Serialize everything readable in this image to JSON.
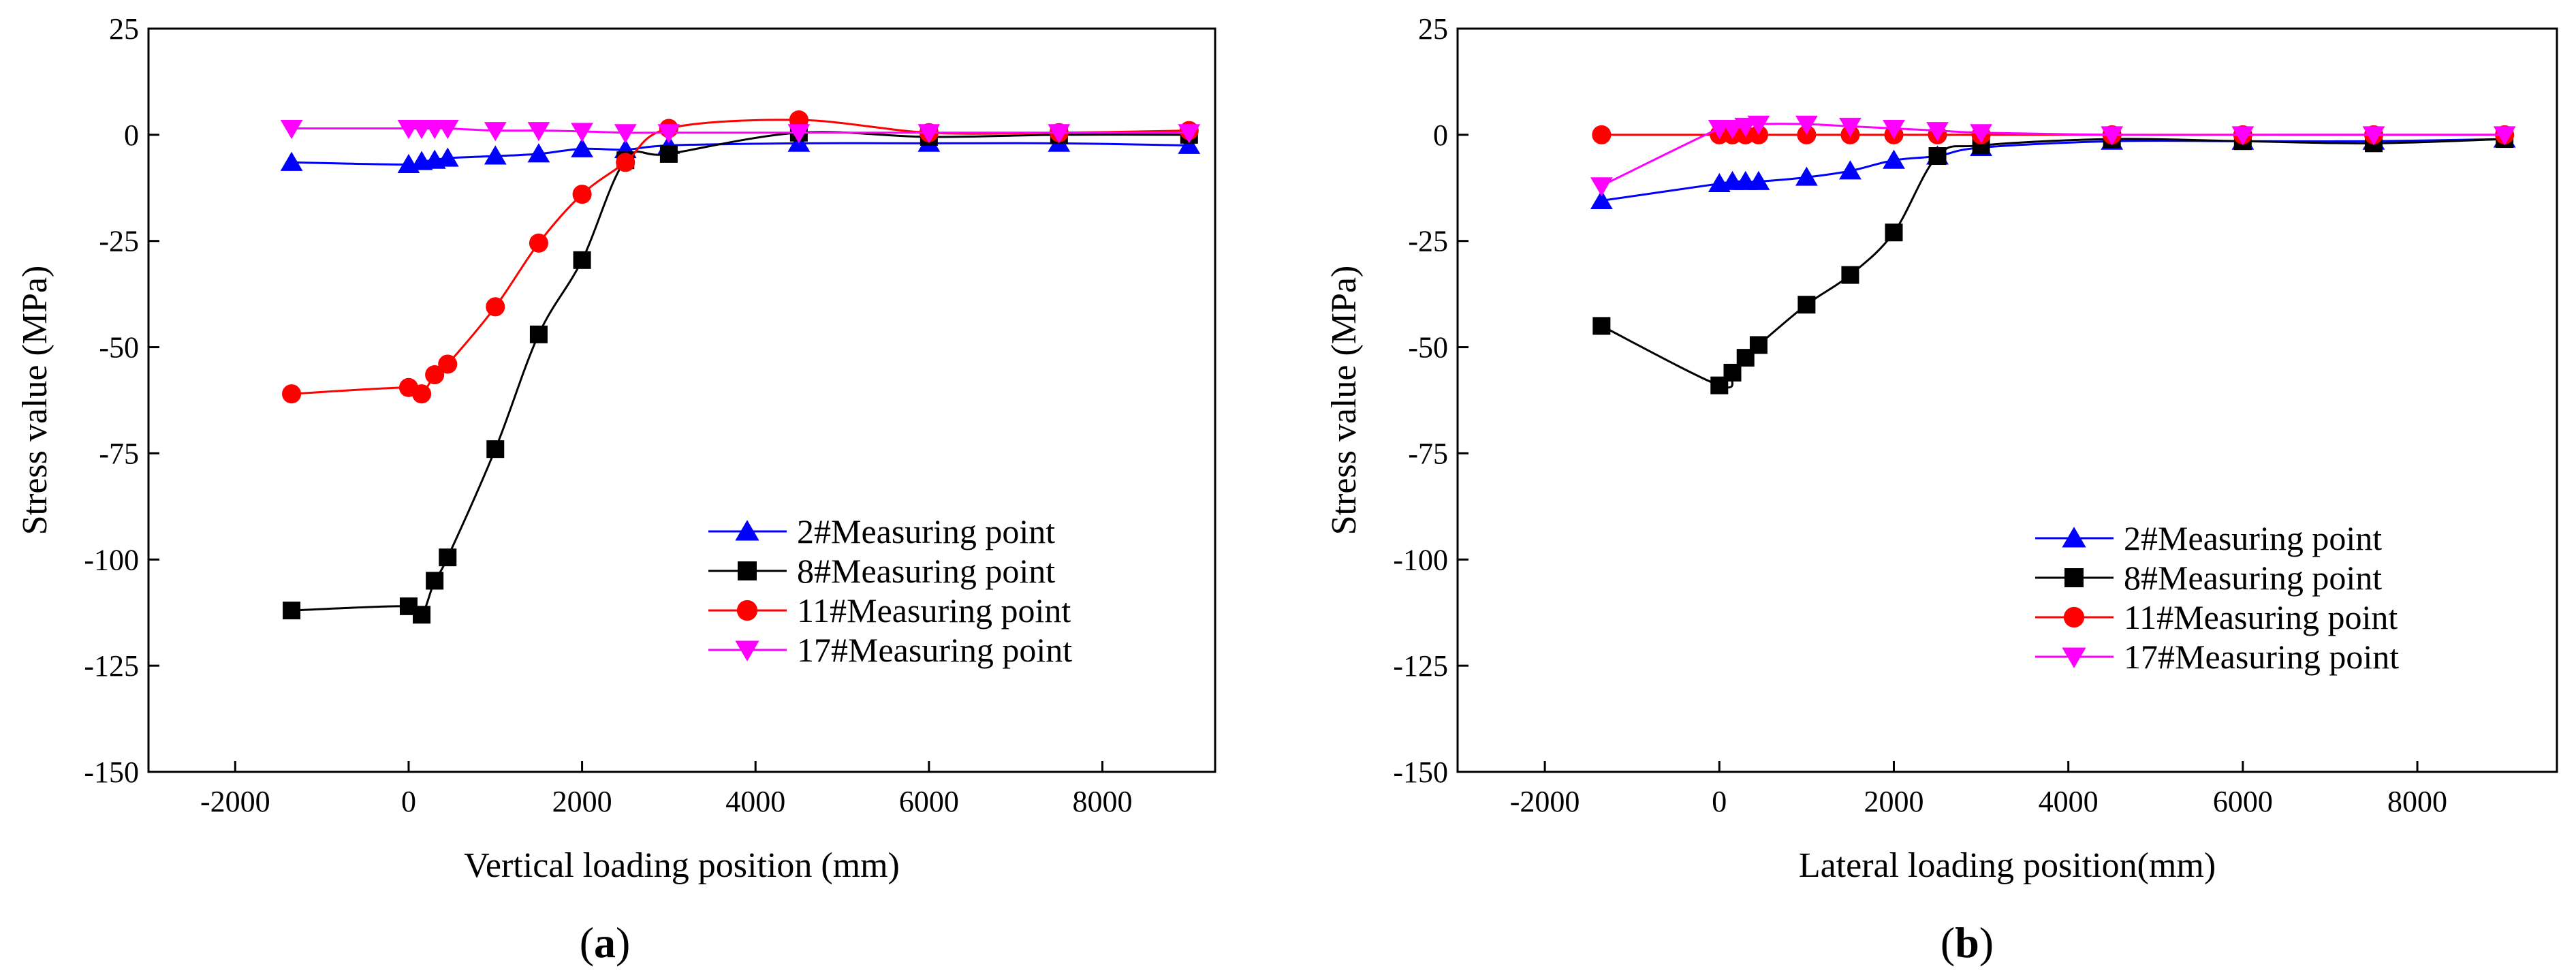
{
  "chart_data": [
    {
      "type": "line",
      "panel_label": "a",
      "xlabel": "Vertical loading position (mm)",
      "ylabel": "Stress value (MPa)",
      "xlim": [
        -3000,
        9300
      ],
      "ylim": [
        -150,
        25
      ],
      "xticks": [
        -2000,
        0,
        2000,
        4000,
        6000,
        8000
      ],
      "yticks": [
        -150,
        -125,
        -100,
        -75,
        -50,
        -25,
        0,
        25
      ],
      "legend_position": "lower-right",
      "series": [
        {
          "name": "2#Measuring point",
          "color": "#0000ff",
          "marker": "triangle-up",
          "x": [
            -1350,
            0,
            150,
            300,
            450,
            1000,
            1500,
            2000,
            2500,
            3000,
            4500,
            6000,
            7500,
            9000
          ],
          "y": [
            -6.5,
            -7,
            -6.3,
            -6,
            -5.5,
            -5,
            -4.5,
            -3.3,
            -3.5,
            -2.5,
            -2,
            -2,
            -2,
            -2.5
          ]
        },
        {
          "name": "8#Measuring point",
          "color": "#000000",
          "marker": "square",
          "x": [
            -1350,
            0,
            150,
            300,
            450,
            1000,
            1500,
            2000,
            2500,
            3000,
            4500,
            6000,
            7500,
            9000
          ],
          "y": [
            -112,
            -111,
            -113,
            -105,
            -99.5,
            -74,
            -47,
            -29.5,
            -6,
            -4.5,
            0.5,
            -0.5,
            0,
            0
          ]
        },
        {
          "name": "11#Measuring point",
          "color": "#ff0000",
          "marker": "circle",
          "x": [
            -1350,
            0,
            150,
            300,
            450,
            1000,
            1500,
            2000,
            2500,
            3000,
            4500,
            6000,
            7500,
            9000
          ],
          "y": [
            -61,
            -59.5,
            -61,
            -56.5,
            -54,
            -40.5,
            -25.5,
            -14,
            -6.5,
            1.5,
            3.5,
            0.5,
            0.5,
            1
          ]
        },
        {
          "name": "17#Measuring point",
          "color": "#ff00ff",
          "marker": "triangle-down",
          "x": [
            -1350,
            0,
            150,
            300,
            450,
            1000,
            1500,
            2000,
            2500,
            3000,
            4500,
            6000,
            7500,
            9000
          ],
          "y": [
            1.5,
            1.5,
            1.5,
            1.5,
            1.5,
            1,
            1,
            0.8,
            0.5,
            0.5,
            0.5,
            0.5,
            0.5,
            0.5
          ]
        }
      ]
    },
    {
      "type": "line",
      "panel_label": "b",
      "xlabel": "Lateral loading position(mm)",
      "ylabel": "Stress value (MPa)",
      "xlim": [
        -3000,
        9600
      ],
      "ylim": [
        -150,
        25
      ],
      "xticks": [
        -2000,
        0,
        2000,
        4000,
        6000,
        8000
      ],
      "yticks": [
        -150,
        -125,
        -100,
        -75,
        -50,
        -25,
        0,
        25
      ],
      "legend_position": "lower-right",
      "series": [
        {
          "name": "2#Measuring point",
          "color": "#0000ff",
          "marker": "triangle-up",
          "x": [
            -1350,
            0,
            150,
            300,
            450,
            1000,
            1500,
            2000,
            2500,
            3000,
            4500,
            6000,
            7500,
            9000
          ],
          "y": [
            -15.5,
            -11.5,
            -11,
            -11,
            -11,
            -10,
            -8.5,
            -6,
            -5,
            -3,
            -1.5,
            -1.5,
            -1.5,
            -1
          ]
        },
        {
          "name": "8#Measuring point",
          "color": "#000000",
          "marker": "square",
          "x": [
            -1350,
            0,
            150,
            300,
            450,
            1000,
            1500,
            2000,
            2500,
            3000,
            4500,
            6000,
            7500,
            9000
          ],
          "y": [
            -45,
            -59,
            -56,
            -52.5,
            -49.5,
            -40,
            -33,
            -23,
            -5,
            -2.5,
            -1,
            -1.5,
            -2,
            -1
          ]
        },
        {
          "name": "11#Measuring point",
          "color": "#ff0000",
          "marker": "circle",
          "x": [
            -1350,
            0,
            150,
            300,
            450,
            1000,
            1500,
            2000,
            2500,
            3000,
            4500,
            6000,
            7500,
            9000
          ],
          "y": [
            0,
            0,
            0,
            0,
            0,
            0,
            0,
            0,
            0,
            0,
            0,
            0,
            0,
            0
          ]
        },
        {
          "name": "17#Measuring point",
          "color": "#ff00ff",
          "marker": "triangle-down",
          "x": [
            -1350,
            0,
            150,
            300,
            450,
            1000,
            1500,
            2000,
            2500,
            3000,
            4500,
            6000,
            7500,
            9000
          ],
          "y": [
            -12,
            1.5,
            1.5,
            2,
            2.5,
            2.5,
            2,
            1.5,
            1,
            0.5,
            0,
            0,
            0,
            0
          ]
        }
      ]
    }
  ]
}
